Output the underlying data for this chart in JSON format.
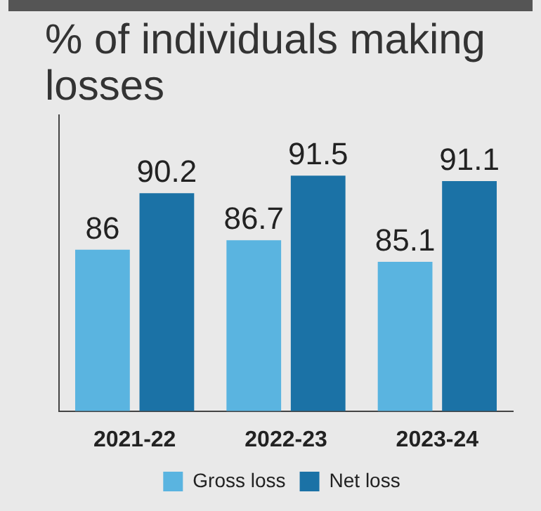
{
  "chart_data": {
    "type": "bar",
    "title": "% of individuals making losses",
    "categories": [
      "2021-22",
      "2022-23",
      "2023-24"
    ],
    "series": [
      {
        "name": "Gross loss",
        "color": "#5ab4e0",
        "values": [
          86,
          86.7,
          85.1
        ]
      },
      {
        "name": "Net loss",
        "color": "#1b72a6",
        "values": [
          90.2,
          91.5,
          91.1
        ]
      }
    ],
    "ylim": [
      74,
      96
    ],
    "tick_labels": "x",
    "legend": "bottom",
    "data_labels": true
  }
}
